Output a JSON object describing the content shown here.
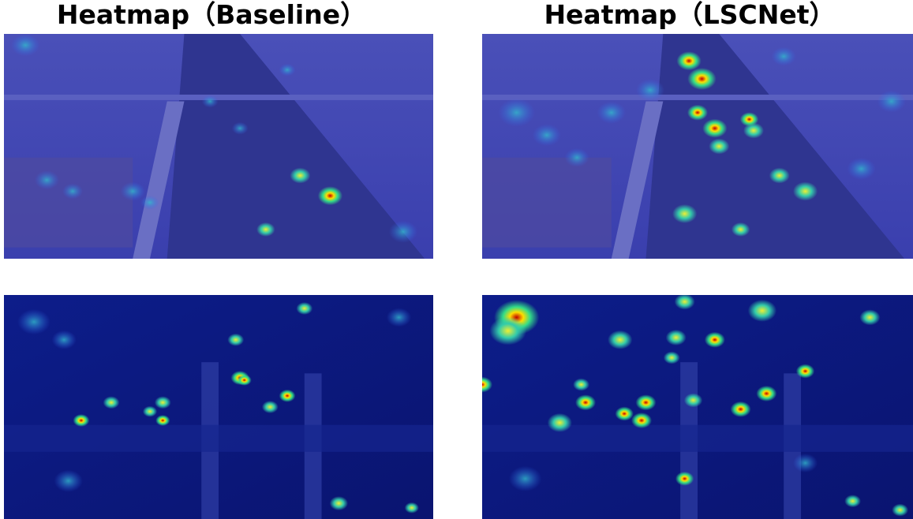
{
  "panels": [
    {
      "title": "Heatmap（Baseline）"
    },
    {
      "title": "Heatmap（LSCNet）"
    }
  ]
}
